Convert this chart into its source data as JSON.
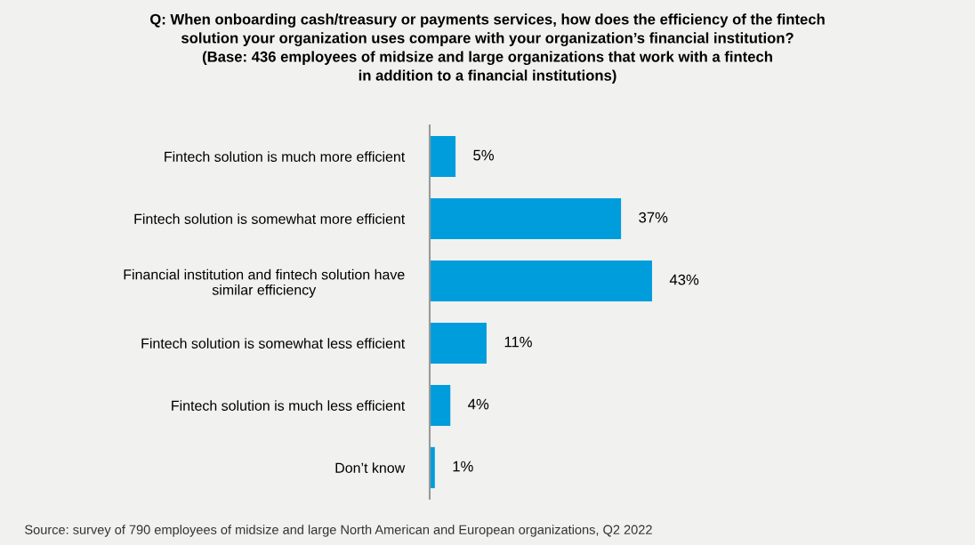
{
  "chart_data": {
    "type": "bar",
    "orientation": "horizontal",
    "title": "Q: When onboarding cash/treasury or payments services, how does the efficiency of the fintech\nsolution your organization uses compare with your organization’s financial institution?\n(Base: 436 employees of midsize and large organizations that work with a fintech\nin addition to a financial institutions)",
    "categories": [
      "Fintech solution is much more efficient",
      "Fintech solution is somewhat more efficient",
      "Financial institution and fintech solution have\nsimilar efficiency",
      "Fintech solution is somewhat less efficient",
      "Fintech solution is much less efficient",
      "Don’t know"
    ],
    "values": [
      5,
      37,
      43,
      11,
      4,
      1
    ],
    "value_labels": [
      "5%",
      "37%",
      "43%",
      "11%",
      "4%",
      "1%"
    ],
    "color": "#009ddc",
    "tick_labels": "y",
    "grid": false,
    "legend": false,
    "annotations": [
      "Source: survey of 790 employees of midsize and large North American and European organizations, Q2 2022"
    ]
  }
}
